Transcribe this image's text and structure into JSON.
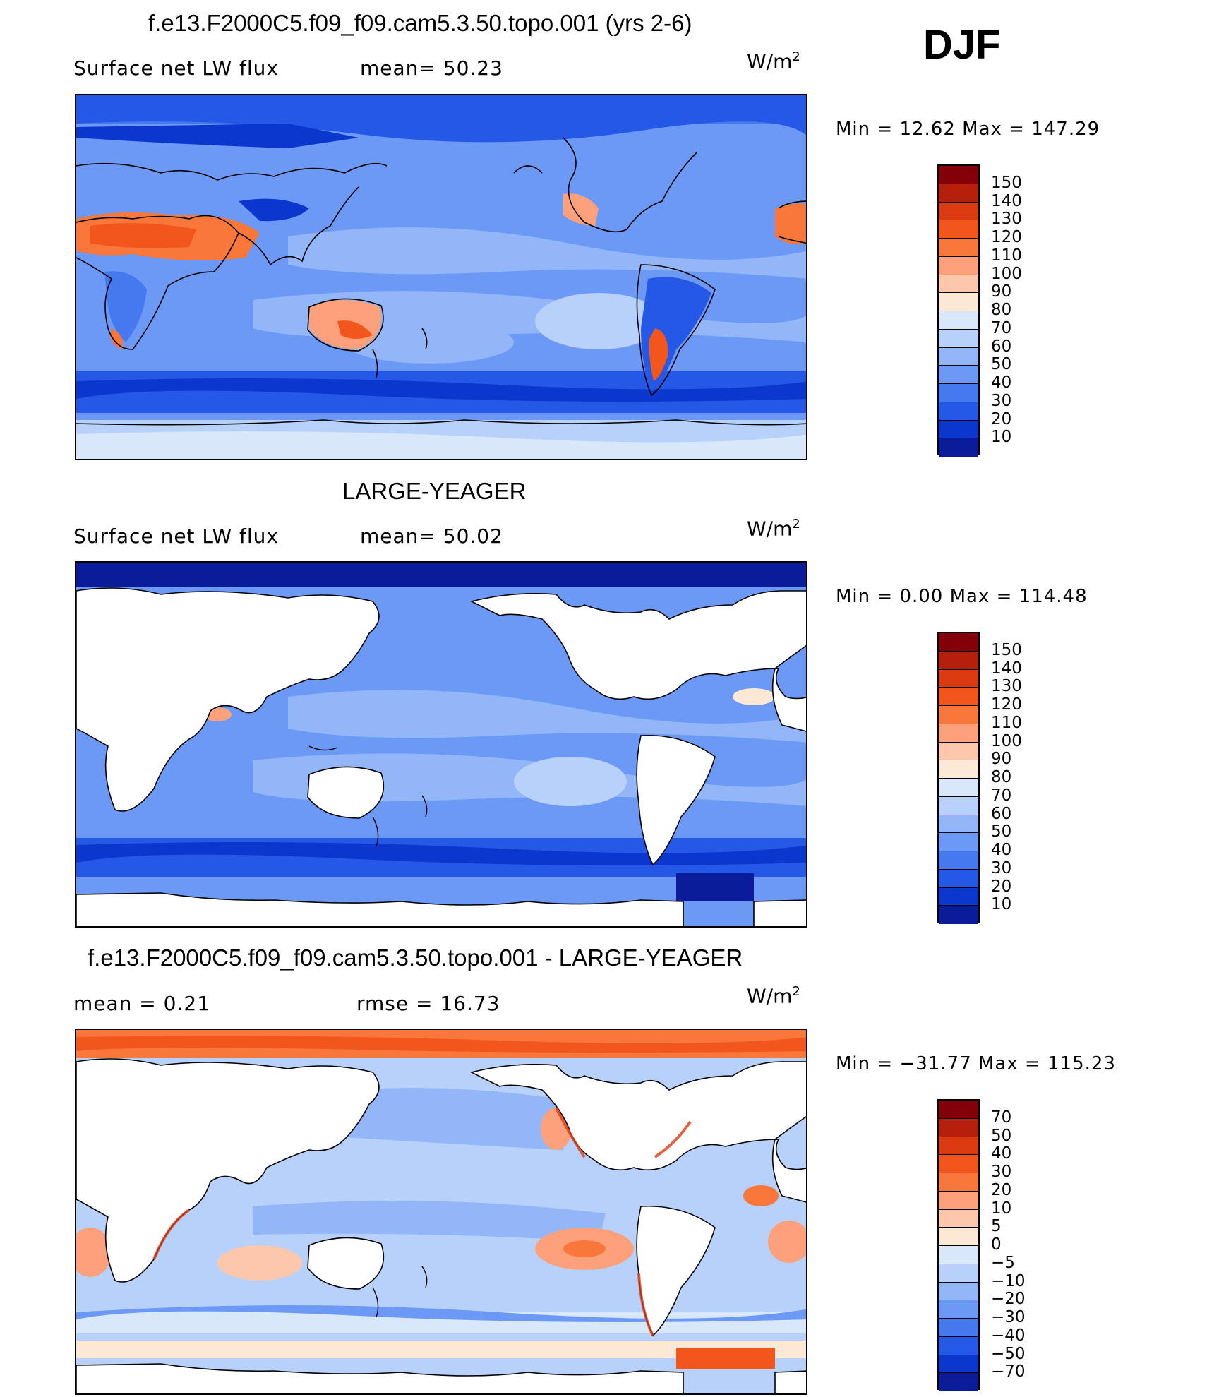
{
  "season": "DJF",
  "units_base": "W/m",
  "units_exp": "2",
  "panels": [
    {
      "title": "f.e13.F2000C5.f09_f09.cam5.3.50.topo.001 (yrs 2-6)",
      "left_text": "Surface net LW flux",
      "right_text": "mean=   50.23",
      "minmax": "Min =   12.62 Max = 147.29",
      "colorbar_labels": [
        "150",
        "140",
        "130",
        "120",
        "110",
        "100",
        "90",
        "80",
        "70",
        "60",
        "50",
        "40",
        "30",
        "20",
        "10"
      ],
      "colorbar_colors": [
        "#830009",
        "#b5200d",
        "#dc3b12",
        "#f2561c",
        "#f9773b",
        "#fca17c",
        "#fdc7ac",
        "#fde8d6",
        "#d8e8fa",
        "#b7d1fb",
        "#93b6f9",
        "#6b99f5",
        "#4679f0",
        "#2558e6",
        "#0b37ce",
        "#0b1c9a"
      ]
    },
    {
      "title": "LARGE-YEAGER",
      "left_text": "Surface net LW flux",
      "right_text": "mean=   50.02",
      "minmax": "Min =    0.00 Max = 114.48",
      "colorbar_labels": [
        "150",
        "140",
        "130",
        "120",
        "110",
        "100",
        "90",
        "80",
        "70",
        "60",
        "50",
        "40",
        "30",
        "20",
        "10"
      ],
      "colorbar_colors": [
        "#830009",
        "#b5200d",
        "#dc3b12",
        "#f2561c",
        "#f9773b",
        "#fca17c",
        "#fdc7ac",
        "#fde8d6",
        "#d8e8fa",
        "#b7d1fb",
        "#93b6f9",
        "#6b99f5",
        "#4679f0",
        "#2558e6",
        "#0b37ce",
        "#0b1c9a"
      ]
    },
    {
      "title": "f.e13.F2000C5.f09_f09.cam5.3.50.topo.001 - LARGE-YEAGER",
      "left_text": "mean =    0.21",
      "right_text": "rmse =   16.73",
      "minmax": "Min = −31.77 Max = 115.23",
      "colorbar_labels": [
        "70",
        "50",
        "40",
        "30",
        "20",
        "10",
        "5",
        "0",
        "−5",
        "−10",
        "−20",
        "−30",
        "−40",
        "−50",
        "−70"
      ],
      "colorbar_colors": [
        "#830009",
        "#b5200d",
        "#dc3b12",
        "#f2561c",
        "#f9773b",
        "#fca17c",
        "#fdc7ac",
        "#fde8d6",
        "#d8e8fa",
        "#b7d1fb",
        "#93b6f9",
        "#6b99f5",
        "#4679f0",
        "#2558e6",
        "#0b37ce",
        "#0b1c9a"
      ]
    }
  ]
}
